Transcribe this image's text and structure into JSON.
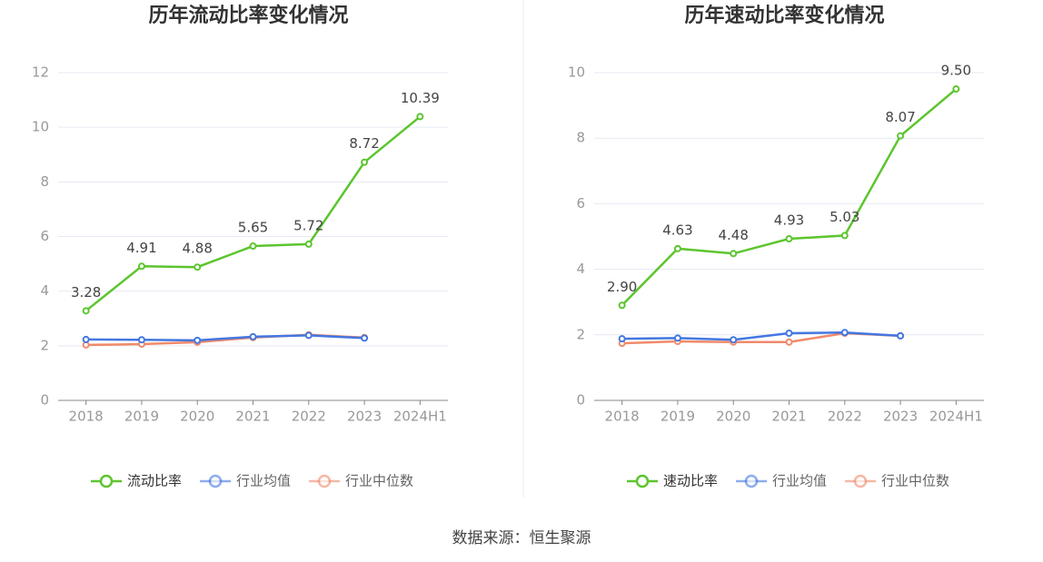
{
  "chart_data": [
    {
      "type": "line",
      "title": "历年流动比率变化情况",
      "categories": [
        "2018",
        "2019",
        "2020",
        "2021",
        "2022",
        "2023",
        "2024H1"
      ],
      "ylim": [
        0,
        12
      ],
      "yticks": [
        0,
        2,
        4,
        6,
        8,
        10,
        12
      ],
      "grid": true,
      "legend": "bottom",
      "series": [
        {
          "name": "流动比率",
          "color": "#5cc52e",
          "values": [
            3.28,
            4.91,
            4.88,
            5.65,
            5.72,
            8.72,
            10.39
          ],
          "value_labels": [
            "3.28",
            "4.91",
            "4.88",
            "5.65",
            "5.72",
            "8.72",
            "10.39"
          ]
        },
        {
          "name": "行业均值",
          "color": "#4477e0",
          "values": [
            2.23,
            2.22,
            2.2,
            2.33,
            2.38,
            2.28,
            null
          ]
        },
        {
          "name": "行业中位数",
          "color": "#f08a6a",
          "values": [
            2.03,
            2.06,
            2.13,
            2.3,
            2.4,
            2.3,
            null
          ]
        }
      ]
    },
    {
      "type": "line",
      "title": "历年速动比率变化情况",
      "categories": [
        "2018",
        "2019",
        "2020",
        "2021",
        "2022",
        "2023",
        "2024H1"
      ],
      "ylim": [
        0,
        10
      ],
      "yticks": [
        0,
        2,
        4,
        6,
        8,
        10
      ],
      "grid": true,
      "legend": "bottom",
      "series": [
        {
          "name": "速动比率",
          "color": "#5cc52e",
          "values": [
            2.9,
            4.63,
            4.48,
            4.93,
            5.03,
            8.07,
            9.5
          ],
          "value_labels": [
            "2.90",
            "4.63",
            "4.48",
            "4.93",
            "5.03",
            "8.07",
            "9.50"
          ]
        },
        {
          "name": "行业均值",
          "color": "#4477e0",
          "values": [
            1.88,
            1.9,
            1.85,
            2.05,
            2.07,
            1.97,
            null
          ]
        },
        {
          "name": "行业中位数",
          "color": "#f08a6a",
          "values": [
            1.74,
            1.8,
            1.78,
            1.78,
            2.05,
            1.97,
            null
          ]
        }
      ]
    }
  ],
  "source": "数据来源：恒生聚源"
}
